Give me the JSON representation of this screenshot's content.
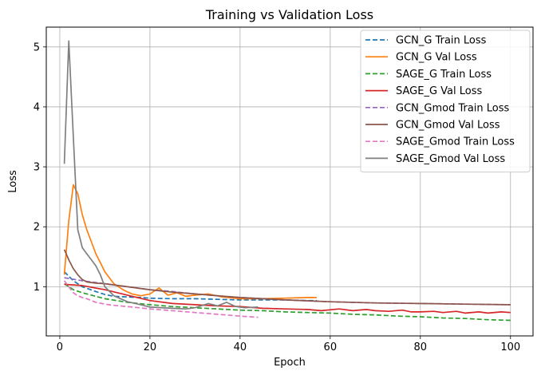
{
  "chart_data": {
    "type": "line",
    "title": "Training vs Validation Loss",
    "xlabel": "Epoch",
    "ylabel": "Loss",
    "xlim": [
      -3,
      105
    ],
    "ylim": [
      0.18,
      5.33
    ],
    "xticks": [
      0,
      20,
      40,
      60,
      80,
      100
    ],
    "yticks": [
      1,
      2,
      3,
      4,
      5
    ],
    "grid": true,
    "legend_position": "top-right",
    "series": [
      {
        "name": "GCN_G Train Loss",
        "color": "#1f77b4",
        "dash": "dashed",
        "x": [
          1,
          3,
          5,
          8,
          10,
          12,
          15,
          18,
          20,
          25,
          30,
          35,
          40,
          45,
          50,
          55,
          57
        ],
        "y": [
          1.25,
          1.1,
          1.0,
          0.92,
          0.87,
          0.84,
          0.83,
          0.82,
          0.81,
          0.8,
          0.8,
          0.79,
          0.78,
          0.78,
          0.78,
          0.77,
          0.77
        ]
      },
      {
        "name": "GCN_G Val Loss",
        "color": "#ff7f0e",
        "dash": "solid",
        "x": [
          1,
          2,
          3,
          4,
          5,
          6,
          7,
          8,
          9,
          10,
          12,
          14,
          16,
          18,
          20,
          22,
          24,
          26,
          28,
          30,
          33,
          36,
          40,
          45,
          50,
          55,
          57
        ],
        "y": [
          1.2,
          2.1,
          2.7,
          2.55,
          2.2,
          1.95,
          1.75,
          1.55,
          1.4,
          1.25,
          1.05,
          0.95,
          0.88,
          0.85,
          0.88,
          0.98,
          0.86,
          0.9,
          0.84,
          0.86,
          0.88,
          0.83,
          0.8,
          0.8,
          0.81,
          0.82,
          0.82
        ]
      },
      {
        "name": "SAGE_G Train Loss",
        "color": "#2ca02c",
        "dash": "dashed",
        "x": [
          1,
          3,
          5,
          8,
          10,
          15,
          20,
          25,
          30,
          35,
          40,
          45,
          50,
          55,
          60,
          65,
          70,
          75,
          80,
          85,
          90,
          95,
          100
        ],
        "y": [
          1.05,
          0.95,
          0.9,
          0.84,
          0.8,
          0.74,
          0.7,
          0.67,
          0.65,
          0.63,
          0.61,
          0.6,
          0.58,
          0.57,
          0.56,
          0.54,
          0.53,
          0.51,
          0.5,
          0.48,
          0.47,
          0.45,
          0.44
        ]
      },
      {
        "name": "SAGE_G Val Loss",
        "color": "#d62728",
        "dash": "solid",
        "x": [
          1,
          5,
          10,
          15,
          20,
          25,
          30,
          35,
          40,
          45,
          50,
          55,
          58,
          62,
          65,
          68,
          70,
          73,
          76,
          78,
          80,
          83,
          85,
          88,
          90,
          93,
          95,
          98,
          100
        ],
        "y": [
          1.04,
          1.02,
          0.95,
          0.86,
          0.77,
          0.72,
          0.7,
          0.68,
          0.67,
          0.64,
          0.63,
          0.62,
          0.6,
          0.63,
          0.6,
          0.62,
          0.6,
          0.59,
          0.61,
          0.58,
          0.58,
          0.59,
          0.57,
          0.59,
          0.56,
          0.58,
          0.56,
          0.58,
          0.57
        ]
      },
      {
        "name": "GCN_Gmod Train Loss",
        "color": "#9467bd",
        "dash": "dashed",
        "x": [
          1,
          5,
          10,
          15,
          20,
          25,
          30,
          35,
          40,
          50,
          60,
          70,
          80,
          90,
          100
        ],
        "y": [
          1.15,
          1.1,
          1.05,
          1.0,
          0.95,
          0.92,
          0.88,
          0.85,
          0.82,
          0.78,
          0.75,
          0.73,
          0.72,
          0.71,
          0.7
        ]
      },
      {
        "name": "GCN_Gmod Val Loss",
        "color": "#8c564b",
        "dash": "solid",
        "x": [
          1,
          2,
          3,
          4,
          5,
          6,
          8,
          10,
          12,
          15,
          20,
          25,
          30,
          35,
          40,
          50,
          60,
          70,
          80,
          90,
          100
        ],
        "y": [
          1.62,
          1.45,
          1.3,
          1.2,
          1.12,
          1.08,
          1.06,
          1.05,
          1.03,
          1.0,
          0.95,
          0.91,
          0.88,
          0.85,
          0.82,
          0.78,
          0.75,
          0.73,
          0.72,
          0.71,
          0.7
        ]
      },
      {
        "name": "SAGE_Gmod Train Loss",
        "color": "#e377c2",
        "dash": "dashed",
        "x": [
          1,
          2,
          3,
          4,
          5,
          6,
          8,
          10,
          12,
          15,
          20,
          25,
          30,
          35,
          40,
          44
        ],
        "y": [
          1.1,
          1.0,
          0.9,
          0.85,
          0.82,
          0.8,
          0.74,
          0.71,
          0.69,
          0.67,
          0.63,
          0.6,
          0.57,
          0.54,
          0.51,
          0.49
        ]
      },
      {
        "name": "SAGE_Gmod Val Loss",
        "color": "#7f7f7f",
        "dash": "solid",
        "x": [
          1,
          2,
          3,
          4,
          5,
          6,
          7,
          8,
          9,
          10,
          12,
          15,
          18,
          20,
          25,
          28,
          30,
          33,
          35,
          37,
          39,
          41,
          44
        ],
        "y": [
          3.05,
          5.1,
          3.5,
          1.95,
          1.65,
          1.55,
          1.45,
          1.35,
          1.2,
          1.0,
          0.85,
          0.75,
          0.7,
          0.66,
          0.64,
          0.63,
          0.65,
          0.72,
          0.68,
          0.74,
          0.67,
          0.65,
          0.66
        ]
      }
    ]
  }
}
